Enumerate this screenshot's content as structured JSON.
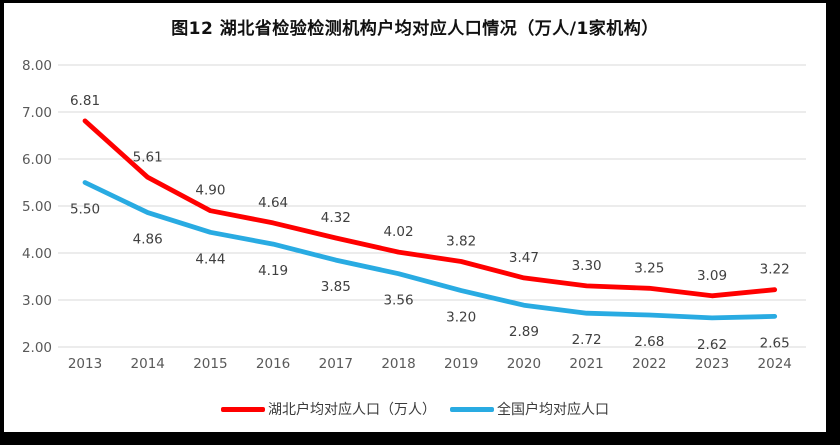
{
  "frame": {
    "border_color": "#000000",
    "background_color": "#ffffff"
  },
  "chart_data": {
    "type": "line",
    "title": "图12 湖北省检验检测机构户均对应人口情况（万人/1家机构）",
    "categories": [
      "2013",
      "2014",
      "2015",
      "2016",
      "2017",
      "2018",
      "2019",
      "2020",
      "2021",
      "2022",
      "2023",
      "2024"
    ],
    "series": [
      {
        "name": "湖北户均对应人口（万人）",
        "color": "#FF0000",
        "label_position": "above",
        "values": [
          6.81,
          5.61,
          4.9,
          4.64,
          4.32,
          4.02,
          3.82,
          3.47,
          3.3,
          3.25,
          3.09,
          3.22
        ]
      },
      {
        "name": "全国户均对应人口",
        "color": "#29ABE2",
        "label_position": "below",
        "values": [
          5.5,
          4.86,
          4.44,
          4.19,
          3.85,
          3.56,
          3.2,
          2.89,
          2.72,
          2.68,
          2.62,
          2.65
        ]
      }
    ],
    "y_ticks": [
      "8.00",
      "7.00",
      "6.00",
      "5.00",
      "4.00",
      "3.00",
      "2.00"
    ],
    "ylim": [
      2,
      8
    ],
    "grid": true,
    "legend_position": "bottom",
    "colors": {
      "gridline": "#D9D9D9",
      "axis_text": "#595959",
      "data_label_text": "#404040"
    }
  }
}
